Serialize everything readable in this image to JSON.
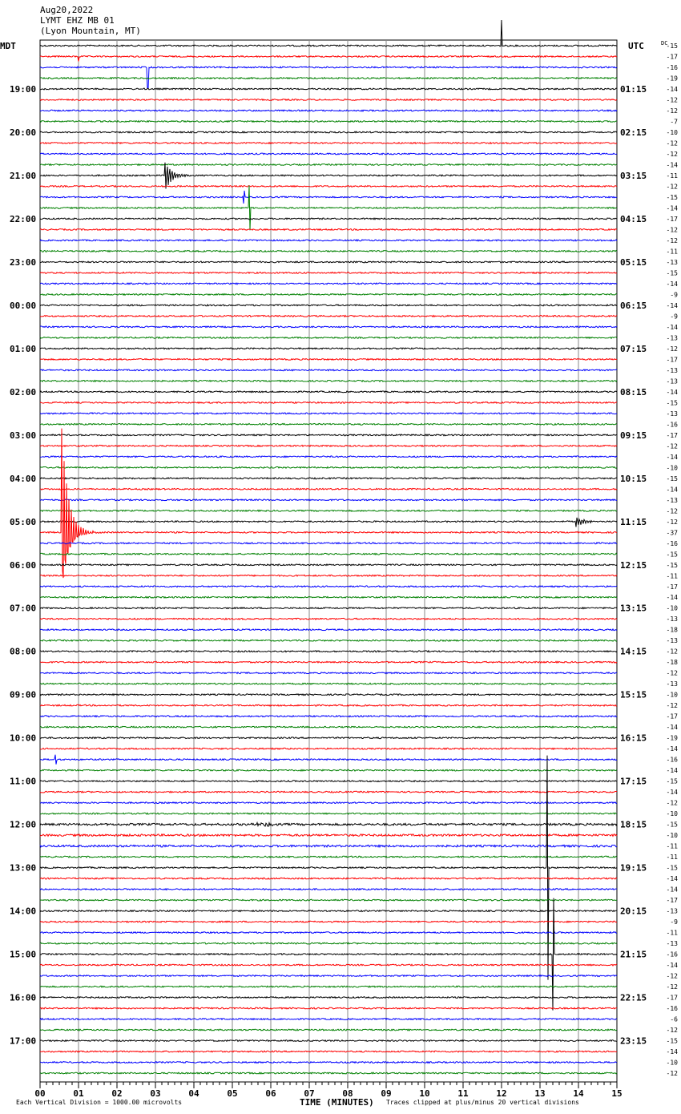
{
  "header": {
    "date": "Aug20,2022",
    "station": "LYMT EHZ MB 01",
    "location": "(Lyon Mountain, MT)"
  },
  "chart_data": {
    "type": "line",
    "subtype": "helicorder",
    "left_timezone": "MDT",
    "right_timezone": "UTC",
    "dc_label": "DC",
    "left_hour_labels": [
      "19:00",
      "20:00",
      "21:00",
      "22:00",
      "23:00",
      "00:00",
      "01:00",
      "02:00",
      "03:00",
      "04:00",
      "05:00",
      "06:00",
      "07:00",
      "08:00",
      "09:00",
      "10:00",
      "11:00",
      "12:00",
      "13:00",
      "14:00",
      "15:00",
      "16:00",
      "17:00"
    ],
    "right_hour_labels": [
      "01:15",
      "02:15",
      "03:15",
      "04:15",
      "05:15",
      "06:15",
      "07:15",
      "08:15",
      "09:15",
      "10:15",
      "11:15",
      "12:15",
      "13:15",
      "14:15",
      "15:15",
      "16:15",
      "17:15",
      "18:15",
      "19:15",
      "20:15",
      "21:15",
      "22:15",
      "23:15"
    ],
    "dc_offsets": [
      -15,
      -17,
      -16,
      -19,
      -14,
      -12,
      -12,
      -7,
      -10,
      -12,
      -12,
      -14,
      -11,
      -12,
      -15,
      -14,
      -17,
      -12,
      -12,
      -11,
      -13,
      -15,
      -14,
      -9,
      -14,
      -9,
      -14,
      -13,
      -12,
      -17,
      -13,
      -13,
      -14,
      -15,
      -13,
      -16,
      -17,
      -12,
      -14,
      -10,
      -15,
      -14,
      -13,
      -12,
      -12,
      -37,
      -16,
      -15,
      -15,
      -11,
      -17,
      -14,
      -10,
      -13,
      -18,
      -13,
      -12,
      -18,
      -12,
      -13,
      -10,
      -12,
      -17,
      -14,
      -19,
      -14,
      -16,
      -14,
      -15,
      -14,
      -12,
      -10,
      -15,
      -10,
      -11,
      -11,
      -15,
      -14,
      -14,
      -17,
      -13,
      -9,
      -11,
      -13,
      -16,
      -14,
      -12,
      -12,
      -17,
      -16,
      -6,
      -12,
      -15,
      -14,
      -10,
      -12
    ],
    "trace_colors": [
      "#000000",
      "#ff0000",
      "#0000ff",
      "#008000"
    ],
    "x_ticks": [
      "00",
      "01",
      "02",
      "03",
      "04",
      "05",
      "06",
      "07",
      "08",
      "09",
      "10",
      "11",
      "12",
      "13",
      "14",
      "15"
    ],
    "xlim": [
      0,
      15
    ],
    "xlabel": "TIME (MINUTES)",
    "scale_note": "Each Vertical Division = 1000.00 microvolts",
    "clip_note": "Traces clipped at plus/minus 20 vertical divisions",
    "grid": true,
    "events": [
      {
        "trace": 0,
        "minute": 12.0,
        "amp": 32,
        "kind": "spike"
      },
      {
        "trace": 1,
        "minute": 1.0,
        "amp": 6,
        "kind": "spike"
      },
      {
        "trace": 2,
        "minute": 2.8,
        "amp": 26,
        "kind": "spike"
      },
      {
        "trace": 12,
        "minute": 3.25,
        "amp": 20,
        "kind": "quake"
      },
      {
        "trace": 14,
        "minute": 5.3,
        "amp": 8,
        "kind": "spike"
      },
      {
        "trace": 15,
        "minute": 5.45,
        "amp": 28,
        "kind": "spike"
      },
      {
        "trace": 45,
        "minute": 0.55,
        "amp": 140,
        "kind": "quake"
      },
      {
        "trace": 44,
        "minute": 13.9,
        "amp": 9,
        "kind": "quake"
      },
      {
        "trace": 72,
        "minute": 5.8,
        "amp": 5,
        "kind": "burst"
      },
      {
        "trace": 66,
        "minute": 0.4,
        "amp": 6,
        "kind": "spike"
      },
      {
        "trace": 84,
        "minute": 13.35,
        "amp": 70,
        "kind": "spike"
      },
      {
        "trace": 76,
        "minute": 13.2,
        "amp": 140,
        "kind": "spike"
      }
    ]
  }
}
